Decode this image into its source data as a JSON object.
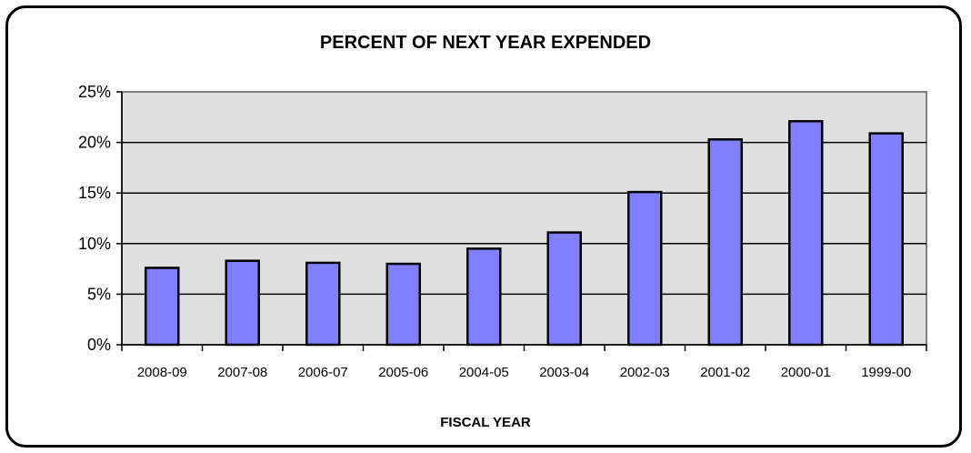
{
  "chart_data": {
    "type": "bar",
    "title": "PERCENT OF NEXT YEAR EXPENDED",
    "xlabel": "FISCAL YEAR",
    "ylabel": "",
    "categories": [
      "2008-09",
      "2007-08",
      "2006-07",
      "2005-06",
      "2004-05",
      "2003-04",
      "2002-03",
      "2001-02",
      "2000-01",
      "1999-00"
    ],
    "values": [
      7.6,
      8.3,
      8.1,
      8.0,
      9.5,
      11.1,
      15.1,
      20.3,
      22.1,
      20.9
    ],
    "ylim": [
      0,
      25
    ],
    "yticks": [
      "0%",
      "5%",
      "10%",
      "15%",
      "20%",
      "25%"
    ],
    "grid": true,
    "legend": "none",
    "colors": {
      "bar": "#8080ff",
      "plot_bg": "#e0e0e0",
      "plot_border": "#808080"
    }
  }
}
